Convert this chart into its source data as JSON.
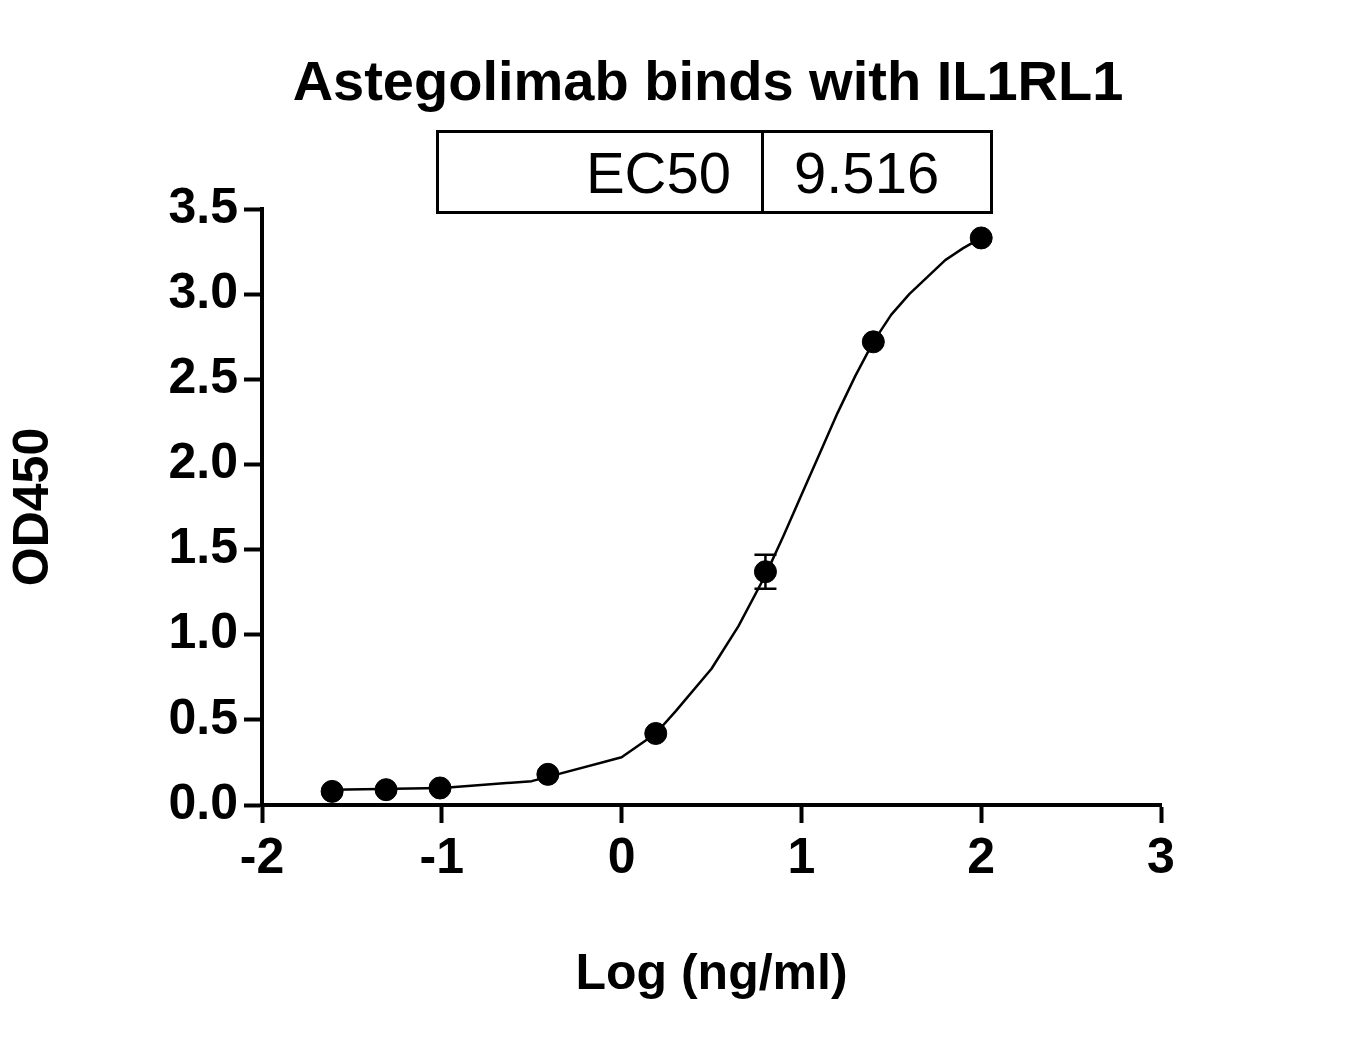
{
  "chart_data": {
    "type": "scatter",
    "title": "Astegolimab binds with IL1RL1",
    "xlabel": "Log (ng/ml)",
    "ylabel": "OD450",
    "annotations": [
      "EC50",
      "9.516"
    ],
    "xlim": [
      -2,
      3
    ],
    "xticks": [
      -2,
      -1,
      0,
      1,
      2,
      3
    ],
    "ylim": [
      0,
      3.5
    ],
    "yticks": [
      {
        "value": 0,
        "label": "0.0"
      },
      0.5,
      {
        "value": 1,
        "label": "1.0"
      },
      1.5,
      {
        "value": 2,
        "label": "2.0"
      },
      2.5,
      {
        "value": 3,
        "label": "3.0"
      },
      3.5
    ],
    "grid": false,
    "legend": false,
    "series": [
      {
        "color": "#000000",
        "marker": "circle",
        "x": [
          -1.61,
          -1.31,
          -1.01,
          -0.41,
          0.19,
          0.8,
          1.4,
          2.0
        ],
        "values": [
          0.08,
          0.09,
          0.1,
          0.18,
          0.42,
          1.37,
          2.72,
          3.33
        ],
        "errors": [
          null,
          null,
          null,
          null,
          null,
          0.1,
          null,
          null
        ]
      },
      {
        "type": "line",
        "color": "#000000",
        "marker": "none",
        "line_style": "solid",
        "x": [
          -1.61,
          -1.0,
          -0.5,
          0.0,
          0.19,
          0.3,
          0.5,
          0.65,
          0.8,
          0.9,
          1.0,
          1.1,
          1.2,
          1.3,
          1.4,
          1.5,
          1.6,
          1.7,
          1.8,
          1.9,
          2.0
        ],
        "values": [
          0.09,
          0.1,
          0.14,
          0.28,
          0.42,
          0.55,
          0.8,
          1.05,
          1.35,
          1.58,
          1.82,
          2.06,
          2.3,
          2.52,
          2.72,
          2.88,
          3.0,
          3.1,
          3.2,
          3.27,
          3.33
        ]
      }
    ]
  }
}
